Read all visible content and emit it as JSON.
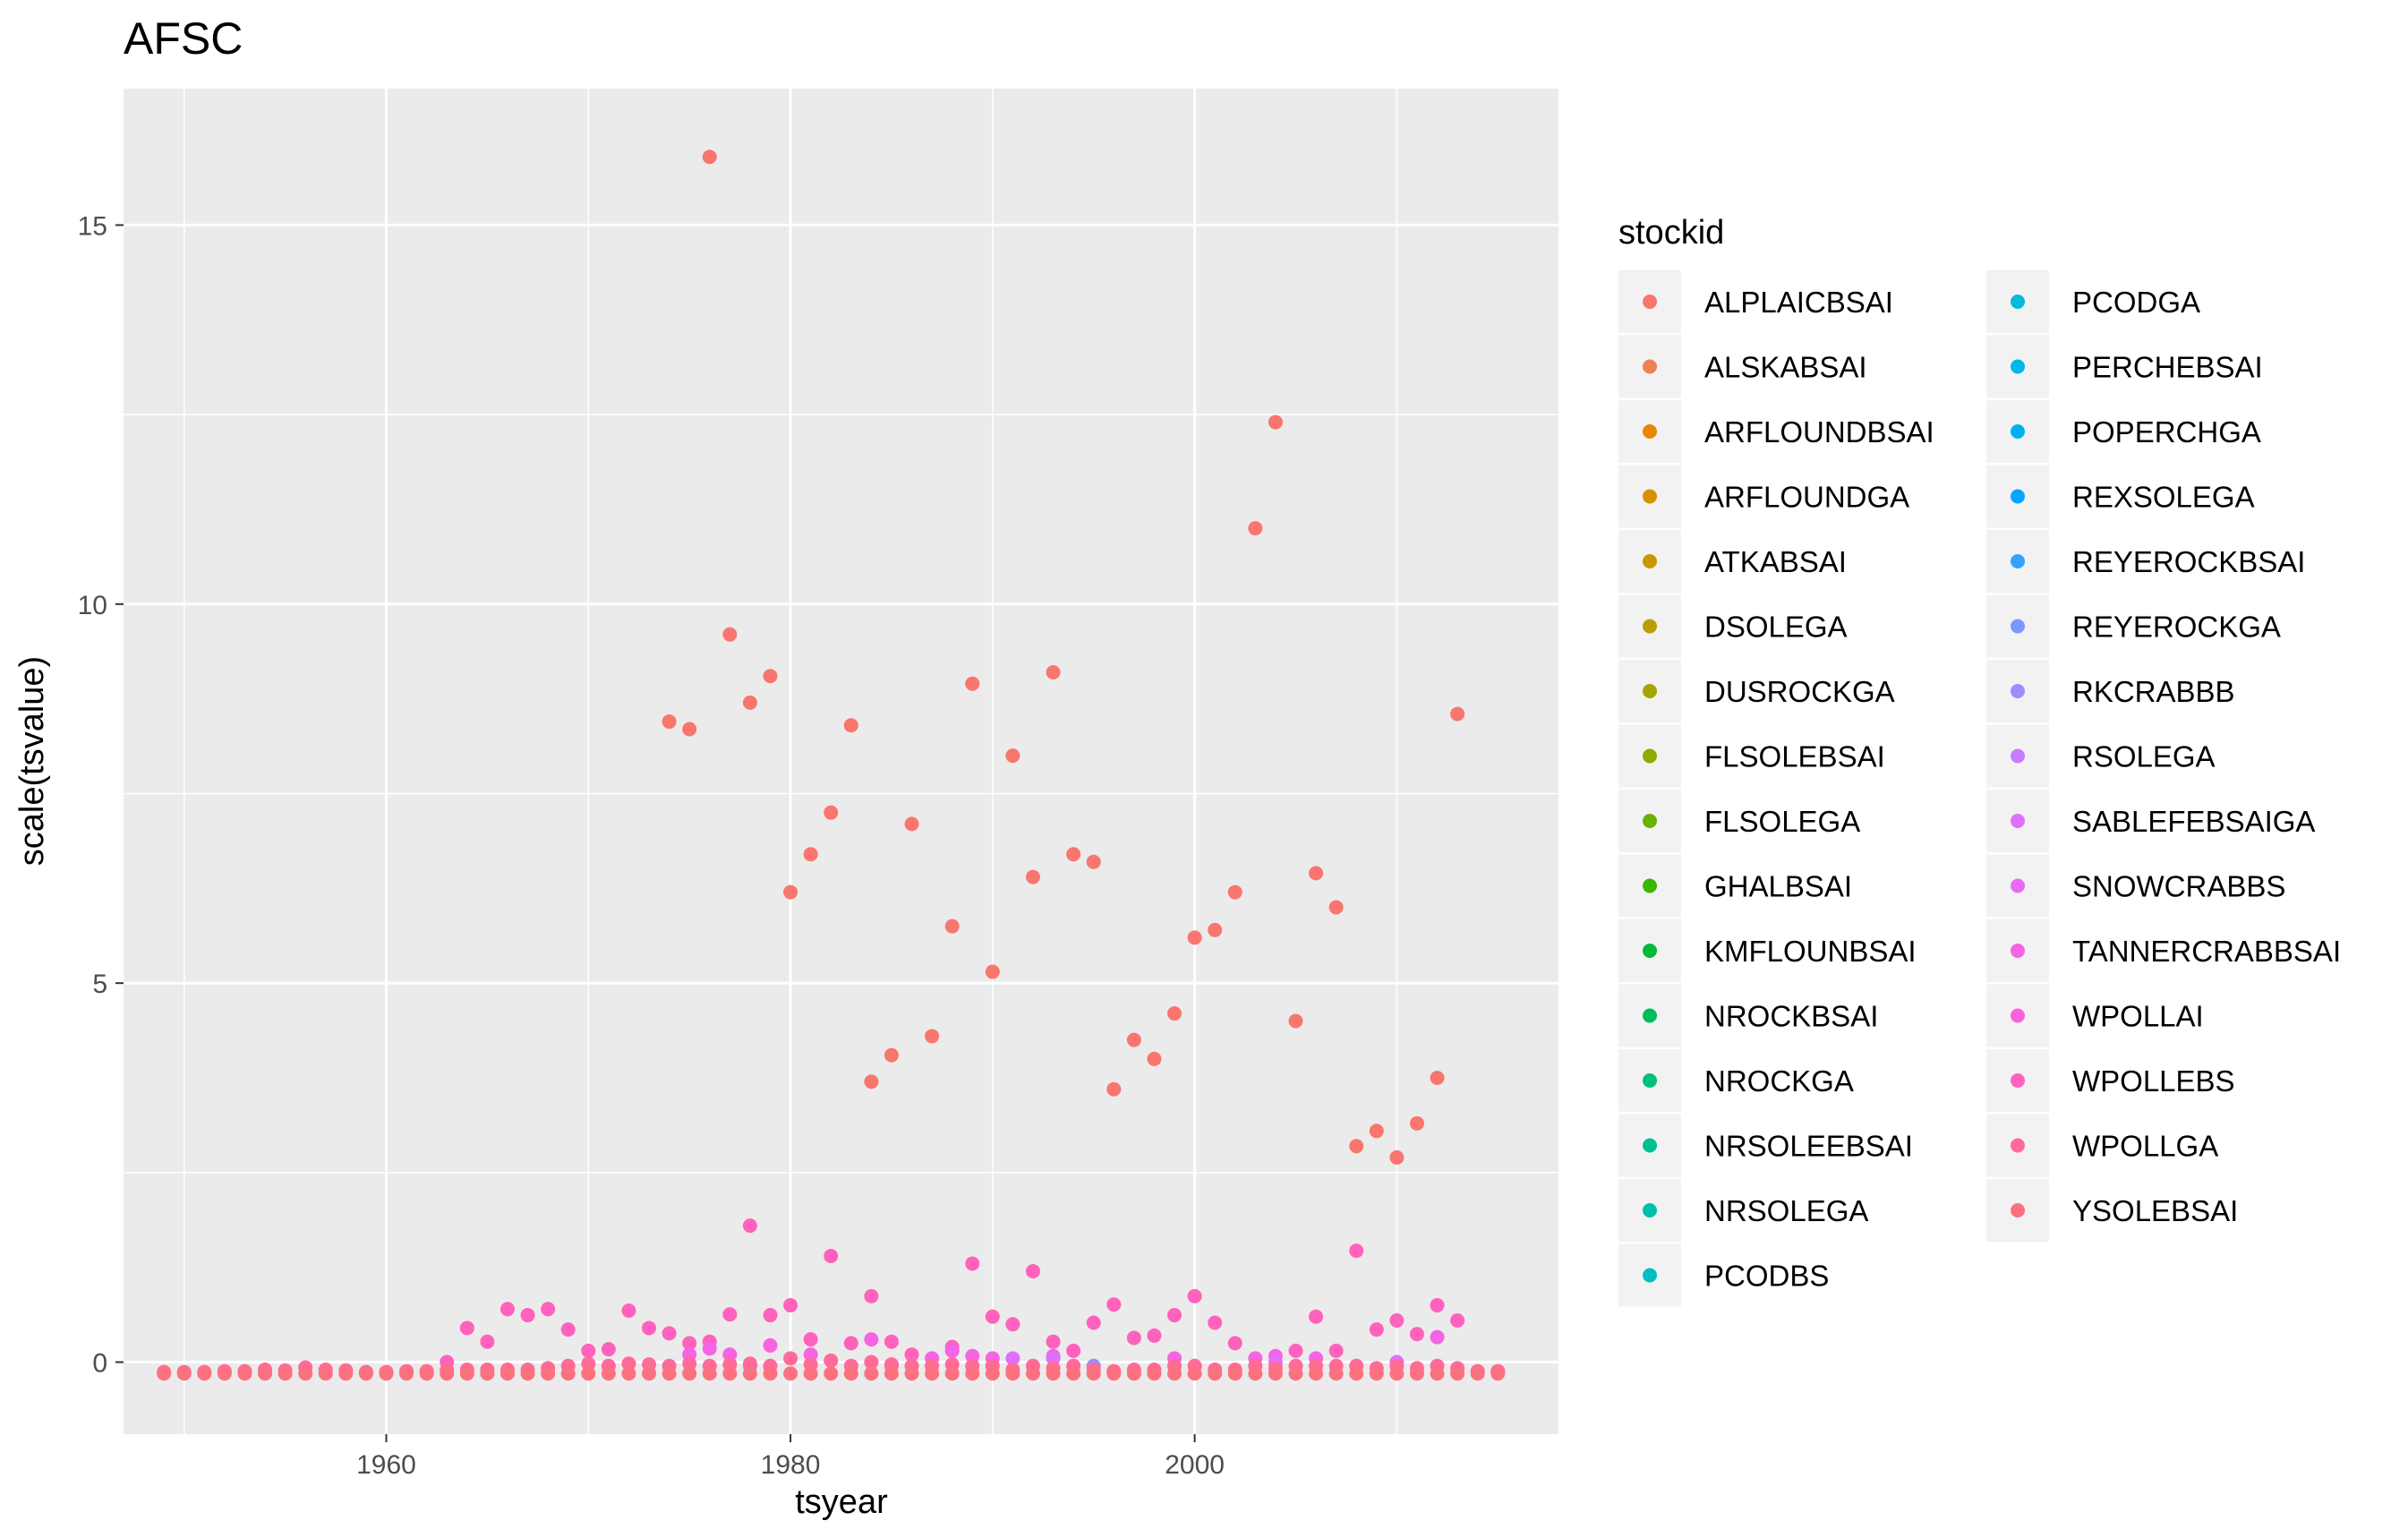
{
  "chart_data": {
    "type": "scatter",
    "title": "AFSC",
    "xlabel": "tsyear",
    "ylabel": "scale(tsvalue)",
    "xlim": [
      1947,
      2018
    ],
    "ylim": [
      -0.95,
      16.8
    ],
    "x_ticks": [
      1960,
      1980,
      2000
    ],
    "x_tick_labels": [
      "1960",
      "1980",
      "2000"
    ],
    "y_ticks": [
      0,
      5,
      10,
      15
    ],
    "y_tick_labels": [
      "0",
      "5",
      "10",
      "15"
    ],
    "grid": true,
    "background": "#ebebeb",
    "legend": {
      "title": "stockid",
      "position": "right",
      "columns": 2,
      "items": [
        {
          "label": "ALPLAICBSAI",
          "color": "#F8766D"
        },
        {
          "label": "ALSKABSAI",
          "color": "#F07F55"
        },
        {
          "label": "ARFLOUNDBSAI",
          "color": "#E58700"
        },
        {
          "label": "ARFLOUNDGA",
          "color": "#D89000"
        },
        {
          "label": "ATKABSAI",
          "color": "#C99800"
        },
        {
          "label": "DSOLEGA",
          "color": "#B8A000"
        },
        {
          "label": "DUSROCKGA",
          "color": "#A3A500"
        },
        {
          "label": "FLSOLEBSAI",
          "color": "#8BAB00"
        },
        {
          "label": "FLSOLEGA",
          "color": "#6BB100"
        },
        {
          "label": "GHALBSAI",
          "color": "#3AB700"
        },
        {
          "label": "KMFLOUNBSAI",
          "color": "#00BA38"
        },
        {
          "label": "NROCKBSAI",
          "color": "#00BD5C"
        },
        {
          "label": "NROCKGA",
          "color": "#00C07A"
        },
        {
          "label": "NRSOLEEBSAI",
          "color": "#00C094"
        },
        {
          "label": "NRSOLEGA",
          "color": "#00C0AA"
        },
        {
          "label": "PCODBS",
          "color": "#00BFC4"
        },
        {
          "label": "PCODGA",
          "color": "#00BCD8"
        },
        {
          "label": "PERCHEBSAI",
          "color": "#00B6EB"
        },
        {
          "label": "POPERCHGA",
          "color": "#00B0F6"
        },
        {
          "label": "REXSOLEGA",
          "color": "#06A4FF"
        },
        {
          "label": "REYEROCKBSAI",
          "color": "#35A2FF"
        },
        {
          "label": "REYEROCKGA",
          "color": "#7997FF"
        },
        {
          "label": "RKCRABBB",
          "color": "#9F8CFF"
        },
        {
          "label": "RSOLEGA",
          "color": "#C77CFF"
        },
        {
          "label": "SABLEFEBSAIGA",
          "color": "#DD71FA"
        },
        {
          "label": "SNOWCRABBS",
          "color": "#E76BF3"
        },
        {
          "label": "TANNERCRABBSAI",
          "color": "#F564E3"
        },
        {
          "label": "WPOLLAI",
          "color": "#FA62DB"
        },
        {
          "label": "WPOLLEBS",
          "color": "#FF62BC"
        },
        {
          "label": "WPOLLGA",
          "color": "#FF6A98"
        },
        {
          "label": "YSOLEBSAI",
          "color": "#FC717F"
        }
      ]
    },
    "series": [
      {
        "name": "ALPLAICBSAI",
        "color": "#F8766D",
        "points": [
          [
            1974,
            8.45
          ],
          [
            1975,
            8.35
          ],
          [
            1976,
            15.9
          ],
          [
            1977,
            9.6
          ],
          [
            1978,
            8.7
          ],
          [
            1979,
            9.05
          ],
          [
            1980,
            6.2
          ],
          [
            1981,
            6.7
          ],
          [
            1982,
            7.25
          ],
          [
            1983,
            8.4
          ],
          [
            1984,
            3.7
          ],
          [
            1985,
            4.05
          ],
          [
            1986,
            7.1
          ],
          [
            1987,
            4.3
          ],
          [
            1988,
            5.75
          ],
          [
            1989,
            8.95
          ],
          [
            1990,
            5.15
          ],
          [
            1991,
            8.0
          ],
          [
            1992,
            6.4
          ],
          [
            1993,
            9.1
          ],
          [
            1994,
            6.7
          ],
          [
            1995,
            6.6
          ],
          [
            1996,
            3.6
          ],
          [
            1997,
            4.25
          ],
          [
            1998,
            4.0
          ],
          [
            1999,
            4.6
          ],
          [
            2000,
            5.6
          ],
          [
            2001,
            5.7
          ],
          [
            2002,
            6.2
          ],
          [
            2003,
            11.0
          ],
          [
            2004,
            12.4
          ],
          [
            2005,
            4.5
          ],
          [
            2006,
            6.45
          ],
          [
            2007,
            6.0
          ],
          [
            2008,
            2.85
          ],
          [
            2009,
            3.05
          ],
          [
            2010,
            2.7
          ],
          [
            2011,
            3.15
          ],
          [
            2012,
            3.75
          ],
          [
            2013,
            8.55
          ]
        ]
      },
      {
        "name": "WPOLLEBS",
        "color": "#FF62BC",
        "points": [
          [
            1963,
            0.0
          ],
          [
            1964,
            0.45
          ],
          [
            1965,
            0.27
          ],
          [
            1966,
            0.7
          ],
          [
            1967,
            0.62
          ],
          [
            1968,
            0.7
          ],
          [
            1969,
            0.43
          ],
          [
            1970,
            0.15
          ],
          [
            1971,
            0.17
          ],
          [
            1972,
            0.68
          ],
          [
            1973,
            0.45
          ],
          [
            1974,
            0.38
          ],
          [
            1975,
            0.25
          ],
          [
            1976,
            0.27
          ],
          [
            1977,
            0.63
          ],
          [
            1978,
            1.8
          ],
          [
            1979,
            0.62
          ],
          [
            1980,
            0.75
          ],
          [
            1981,
            0.3
          ],
          [
            1982,
            1.4
          ],
          [
            1983,
            0.25
          ],
          [
            1984,
            0.87
          ],
          [
            1985,
            0.27
          ],
          [
            1986,
            0.1
          ],
          [
            1988,
            0.2
          ],
          [
            1989,
            1.3
          ],
          [
            1990,
            0.6
          ],
          [
            1991,
            0.5
          ],
          [
            1992,
            1.2
          ],
          [
            1993,
            0.27
          ],
          [
            1994,
            0.15
          ],
          [
            1995,
            0.52
          ],
          [
            1996,
            0.76
          ],
          [
            1997,
            0.32
          ],
          [
            1998,
            0.35
          ],
          [
            1999,
            0.62
          ],
          [
            2000,
            0.87
          ],
          [
            2001,
            0.52
          ],
          [
            2002,
            0.25
          ],
          [
            2005,
            0.15
          ],
          [
            2006,
            0.6
          ],
          [
            2007,
            0.15
          ],
          [
            2008,
            1.47
          ],
          [
            2009,
            0.43
          ],
          [
            2010,
            0.55
          ],
          [
            2011,
            0.37
          ],
          [
            2012,
            0.75
          ],
          [
            2013,
            0.55
          ]
        ]
      },
      {
        "name": "TANNERCRABBSAI",
        "color": "#F564E3",
        "points": [
          [
            1975,
            0.1
          ],
          [
            1976,
            0.18
          ],
          [
            1977,
            0.1
          ],
          [
            1979,
            0.22
          ],
          [
            1981,
            0.1
          ],
          [
            1984,
            0.3
          ],
          [
            1987,
            0.05
          ],
          [
            1988,
            0.15
          ],
          [
            1989,
            0.08
          ],
          [
            1990,
            0.05
          ],
          [
            1993,
            0.08
          ],
          [
            1999,
            0.05
          ],
          [
            2003,
            0.05
          ],
          [
            2004,
            0.08
          ],
          [
            2006,
            0.05
          ],
          [
            2012,
            0.33
          ]
        ]
      },
      {
        "name": "SABLEFEBSAIGA",
        "color": "#DD71FA",
        "points": [
          [
            1991,
            0.05
          ],
          [
            1993,
            0.05
          ],
          [
            2004,
            0.0
          ],
          [
            2010,
            0.0
          ]
        ]
      },
      {
        "name": "RKCRABBB",
        "color": "#9F8CFF",
        "points": [
          [
            1978,
            -0.05
          ],
          [
            1985,
            -0.05
          ],
          [
            1995,
            -0.05
          ],
          [
            2015,
            -0.12
          ]
        ]
      },
      {
        "name": "WPOLLGA",
        "color": "#FF6A98",
        "points": [
          [
            1949,
            -0.13
          ],
          [
            1950,
            -0.13
          ],
          [
            1951,
            -0.13
          ],
          [
            1952,
            -0.12
          ],
          [
            1953,
            -0.12
          ],
          [
            1954,
            -0.1
          ],
          [
            1955,
            -0.11
          ],
          [
            1956,
            -0.07
          ],
          [
            1957,
            -0.1
          ],
          [
            1958,
            -0.11
          ],
          [
            1959,
            -0.13
          ],
          [
            1960,
            -0.13
          ],
          [
            1961,
            -0.12
          ],
          [
            1962,
            -0.12
          ],
          [
            1963,
            -0.11
          ],
          [
            1964,
            -0.1
          ],
          [
            1965,
            -0.1
          ],
          [
            1966,
            -0.1
          ],
          [
            1967,
            -0.1
          ],
          [
            1968,
            -0.08
          ],
          [
            1969,
            -0.05
          ],
          [
            1970,
            -0.02
          ],
          [
            1971,
            -0.05
          ],
          [
            1972,
            -0.02
          ],
          [
            1973,
            -0.03
          ],
          [
            1974,
            -0.05
          ],
          [
            1975,
            -0.02
          ],
          [
            1976,
            -0.05
          ],
          [
            1977,
            -0.03
          ],
          [
            1978,
            -0.02
          ],
          [
            1979,
            -0.05
          ],
          [
            1980,
            0.05
          ],
          [
            1981,
            -0.03
          ],
          [
            1982,
            0.02
          ],
          [
            1983,
            -0.05
          ],
          [
            1984,
            0.0
          ],
          [
            1985,
            -0.03
          ],
          [
            1986,
            -0.05
          ],
          [
            1987,
            -0.05
          ],
          [
            1988,
            -0.03
          ],
          [
            1989,
            -0.05
          ],
          [
            1990,
            -0.05
          ],
          [
            1991,
            -0.1
          ],
          [
            1992,
            -0.05
          ],
          [
            1993,
            -0.08
          ],
          [
            1994,
            -0.05
          ],
          [
            1995,
            -0.1
          ],
          [
            1996,
            -0.12
          ],
          [
            1997,
            -0.1
          ],
          [
            1998,
            -0.1
          ],
          [
            1999,
            -0.05
          ],
          [
            2000,
            -0.05
          ],
          [
            2001,
            -0.1
          ],
          [
            2002,
            -0.1
          ],
          [
            2003,
            -0.05
          ],
          [
            2004,
            -0.08
          ],
          [
            2005,
            -0.05
          ],
          [
            2006,
            -0.05
          ],
          [
            2007,
            -0.05
          ],
          [
            2008,
            -0.05
          ],
          [
            2009,
            -0.08
          ],
          [
            2010,
            -0.05
          ],
          [
            2011,
            -0.08
          ],
          [
            2012,
            -0.05
          ],
          [
            2013,
            -0.08
          ],
          [
            2014,
            -0.12
          ],
          [
            2015,
            -0.12
          ]
        ]
      },
      {
        "name": "YSOLEBSAI",
        "color": "#FC717F",
        "points": [
          [
            1949,
            -0.15
          ],
          [
            1950,
            -0.15
          ],
          [
            1951,
            -0.15
          ],
          [
            1952,
            -0.15
          ],
          [
            1953,
            -0.15
          ],
          [
            1954,
            -0.15
          ],
          [
            1955,
            -0.15
          ],
          [
            1956,
            -0.15
          ],
          [
            1957,
            -0.15
          ],
          [
            1958,
            -0.15
          ],
          [
            1959,
            -0.15
          ],
          [
            1960,
            -0.15
          ],
          [
            1961,
            -0.15
          ],
          [
            1962,
            -0.15
          ],
          [
            1963,
            -0.15
          ],
          [
            1964,
            -0.15
          ],
          [
            1965,
            -0.15
          ],
          [
            1966,
            -0.15
          ],
          [
            1967,
            -0.15
          ],
          [
            1968,
            -0.15
          ],
          [
            1969,
            -0.15
          ],
          [
            1970,
            -0.15
          ],
          [
            1971,
            -0.15
          ],
          [
            1972,
            -0.15
          ],
          [
            1973,
            -0.15
          ],
          [
            1974,
            -0.15
          ],
          [
            1975,
            -0.15
          ],
          [
            1976,
            -0.15
          ],
          [
            1977,
            -0.15
          ],
          [
            1978,
            -0.15
          ],
          [
            1979,
            -0.15
          ],
          [
            1980,
            -0.15
          ],
          [
            1981,
            -0.15
          ],
          [
            1982,
            -0.15
          ],
          [
            1983,
            -0.15
          ],
          [
            1984,
            -0.15
          ],
          [
            1985,
            -0.15
          ],
          [
            1986,
            -0.15
          ],
          [
            1987,
            -0.15
          ],
          [
            1988,
            -0.15
          ],
          [
            1989,
            -0.15
          ],
          [
            1990,
            -0.15
          ],
          [
            1991,
            -0.15
          ],
          [
            1992,
            -0.15
          ],
          [
            1993,
            -0.15
          ],
          [
            1994,
            -0.15
          ],
          [
            1995,
            -0.15
          ],
          [
            1996,
            -0.15
          ],
          [
            1997,
            -0.15
          ],
          [
            1998,
            -0.15
          ],
          [
            1999,
            -0.15
          ],
          [
            2000,
            -0.15
          ],
          [
            2001,
            -0.15
          ],
          [
            2002,
            -0.15
          ],
          [
            2003,
            -0.15
          ],
          [
            2004,
            -0.15
          ],
          [
            2005,
            -0.15
          ],
          [
            2006,
            -0.15
          ],
          [
            2007,
            -0.15
          ],
          [
            2008,
            -0.15
          ],
          [
            2009,
            -0.15
          ],
          [
            2010,
            -0.15
          ],
          [
            2011,
            -0.15
          ],
          [
            2012,
            -0.15
          ],
          [
            2013,
            -0.15
          ],
          [
            2014,
            -0.15
          ],
          [
            2015,
            -0.15
          ]
        ]
      }
    ]
  }
}
